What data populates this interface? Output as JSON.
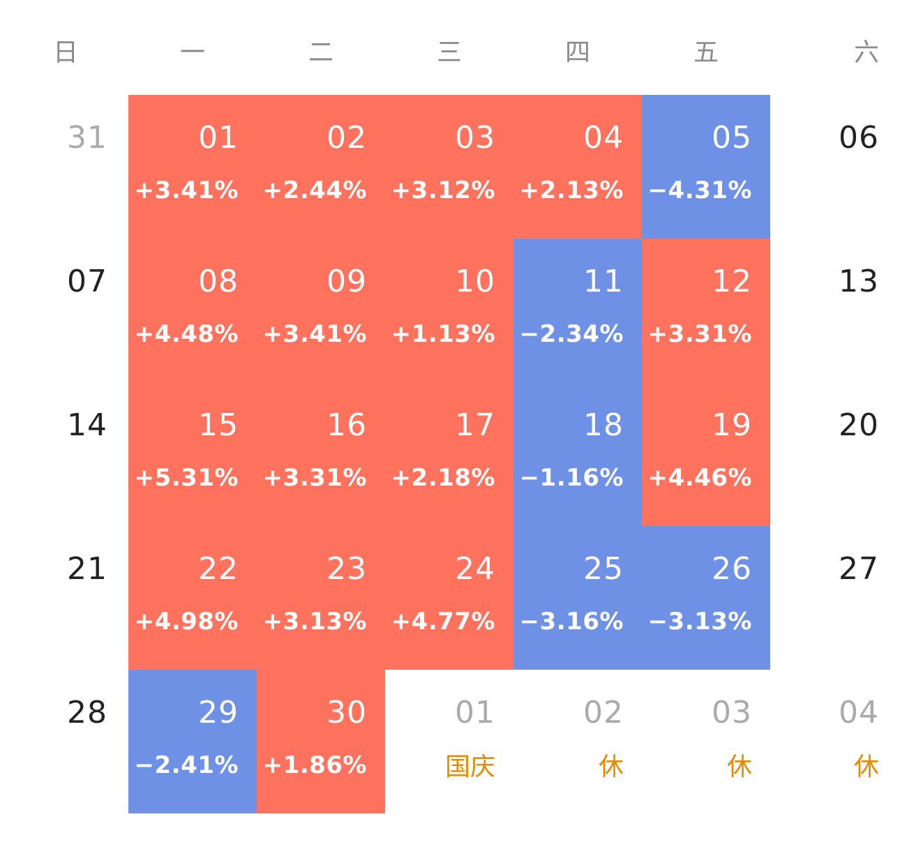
{
  "weekdays": [
    "日",
    "一",
    "二",
    "三",
    "四",
    "五",
    "六"
  ],
  "colors": {
    "up": "#ff735e",
    "down": "#6e91e6",
    "holiday_text": "#e68a00",
    "muted_text": "#aaaaaa",
    "normal_text": "#222222"
  },
  "weeks": [
    [
      {
        "day": "31",
        "state": "other"
      },
      {
        "day": "01",
        "state": "up",
        "change": "+3.41%"
      },
      {
        "day": "02",
        "state": "up",
        "change": "+2.44%"
      },
      {
        "day": "03",
        "state": "up",
        "change": "+3.12%"
      },
      {
        "day": "04",
        "state": "up",
        "change": "+2.13%"
      },
      {
        "day": "05",
        "state": "down",
        "change": "−4.31%"
      },
      {
        "day": "06",
        "state": "weekend"
      }
    ],
    [
      {
        "day": "07",
        "state": "weekend"
      },
      {
        "day": "08",
        "state": "up",
        "change": "+4.48%"
      },
      {
        "day": "09",
        "state": "up",
        "change": "+3.41%"
      },
      {
        "day": "10",
        "state": "up",
        "change": "+1.13%"
      },
      {
        "day": "11",
        "state": "down",
        "change": "−2.34%"
      },
      {
        "day": "12",
        "state": "up",
        "change": "+3.31%"
      },
      {
        "day": "13",
        "state": "weekend"
      }
    ],
    [
      {
        "day": "14",
        "state": "weekend"
      },
      {
        "day": "15",
        "state": "up",
        "change": "+5.31%"
      },
      {
        "day": "16",
        "state": "up",
        "change": "+3.31%"
      },
      {
        "day": "17",
        "state": "up",
        "change": "+2.18%"
      },
      {
        "day": "18",
        "state": "down",
        "change": "−1.16%"
      },
      {
        "day": "19",
        "state": "up",
        "change": "+4.46%"
      },
      {
        "day": "20",
        "state": "weekend"
      }
    ],
    [
      {
        "day": "21",
        "state": "weekend"
      },
      {
        "day": "22",
        "state": "up",
        "change": "+4.98%"
      },
      {
        "day": "23",
        "state": "up",
        "change": "+3.13%"
      },
      {
        "day": "24",
        "state": "up",
        "change": "+4.77%"
      },
      {
        "day": "25",
        "state": "down",
        "change": "−3.16%"
      },
      {
        "day": "26",
        "state": "down",
        "change": "−3.13%"
      },
      {
        "day": "27",
        "state": "weekend"
      }
    ],
    [
      {
        "day": "28",
        "state": "weekend"
      },
      {
        "day": "29",
        "state": "down",
        "change": "−2.41%"
      },
      {
        "day": "30",
        "state": "up",
        "change": "+1.86%"
      },
      {
        "day": "01",
        "state": "other",
        "tag": "国庆"
      },
      {
        "day": "02",
        "state": "other",
        "tag": "休"
      },
      {
        "day": "03",
        "state": "other",
        "tag": "休"
      },
      {
        "day": "04",
        "state": "other",
        "tag": "休"
      }
    ]
  ]
}
